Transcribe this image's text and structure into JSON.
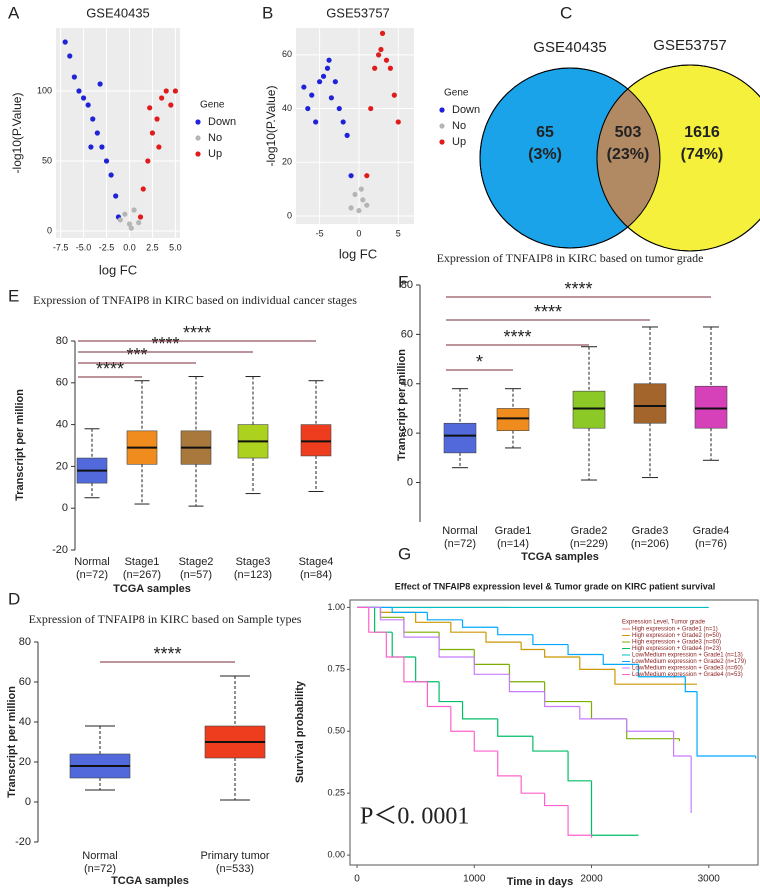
{
  "chart_data": [
    {
      "type": "scatter",
      "panel": "A",
      "title": "GSE40435",
      "xlabel": "log FC",
      "ylabel": "-log10(P.Value)",
      "legend_title": "Gene",
      "xlim": [
        -8,
        5.5
      ],
      "ylim": [
        -5,
        145
      ],
      "xticks": [
        -7.5,
        {
          "value": -5,
          "label": "-5.0"
        },
        -2.5,
        {
          "value": 0,
          "label": "0.0"
        },
        2.5,
        {
          "value": 5,
          "label": "5.0"
        }
      ],
      "yticks": [
        0,
        50,
        100
      ],
      "grid": true,
      "series": [
        {
          "name": "Down",
          "color": "#1f22d6",
          "x": [
            -7,
            -6.5,
            -6,
            -5.5,
            -5,
            -4.5,
            -4,
            -3.5,
            -3,
            -2.5,
            -2,
            -1.5,
            -1.2,
            -3.2,
            -4.2
          ],
          "values": [
            135,
            125,
            110,
            100,
            95,
            90,
            80,
            70,
            60,
            50,
            40,
            25,
            10,
            105,
            60
          ]
        },
        {
          "name": "No",
          "color": "#b5b5b5",
          "x": [
            -1,
            -0.5,
            0,
            0.5,
            1,
            0.2
          ],
          "values": [
            8,
            12,
            5,
            15,
            6,
            2
          ]
        },
        {
          "name": "Up",
          "color": "#e01b1b",
          "x": [
            1.2,
            1.5,
            2,
            2.5,
            3,
            3.5,
            4,
            4.5,
            5,
            2.2,
            3.2
          ],
          "values": [
            10,
            30,
            50,
            70,
            80,
            95,
            100,
            90,
            100,
            88,
            60
          ]
        }
      ]
    },
    {
      "type": "scatter",
      "panel": "B",
      "title": "GSE53757",
      "xlabel": "log FC",
      "ylabel": "-log10(P.Value)",
      "legend_title": "Gene",
      "xlim": [
        -8,
        7
      ],
      "ylim": [
        -3,
        70
      ],
      "xticks": [
        -5,
        0,
        5
      ],
      "yticks": [
        0,
        20,
        40,
        60
      ],
      "grid": true,
      "series": [
        {
          "name": "Down",
          "color": "#1f22d6",
          "x": [
            -7,
            -6.5,
            -6,
            -5,
            -4.5,
            -4,
            -3.5,
            -3,
            -2.5,
            -2,
            -1.5,
            -1,
            -5.5,
            -3.8
          ],
          "values": [
            48,
            40,
            45,
            50,
            52,
            55,
            44,
            50,
            40,
            35,
            30,
            15,
            35,
            58
          ]
        },
        {
          "name": "No",
          "color": "#b5b5b5",
          "x": [
            -1,
            -0.5,
            0,
            0.5,
            1,
            0.3
          ],
          "values": [
            3,
            8,
            2,
            6,
            4,
            10
          ]
        },
        {
          "name": "Up",
          "color": "#e01b1b",
          "x": [
            1,
            1.5,
            2,
            2.5,
            3,
            3.5,
            4,
            4.5,
            5,
            2.8
          ],
          "values": [
            15,
            40,
            55,
            60,
            68,
            58,
            55,
            45,
            35,
            62
          ]
        }
      ]
    },
    {
      "type": "venn",
      "panel": "C",
      "sets": [
        {
          "name": "GSE40435",
          "color": "#1aa3e8"
        },
        {
          "name": "GSE53757",
          "color": "#f5f03c"
        }
      ],
      "overlap_color": "#b18a64",
      "regions": [
        {
          "count": 65,
          "percent_label": "(3%)"
        },
        {
          "count": 503,
          "percent_label": "(23%)"
        },
        {
          "count": 1616,
          "percent_label": "(74%)"
        }
      ]
    },
    {
      "type": "box",
      "panel": "E",
      "title": "Expression of TNFAIP8 in KIRC based on individual cancer stages",
      "ylabel": "Transcript per million",
      "xlabel": "TCGA samples",
      "categories": [
        "Normal",
        "Stage1",
        "Stage2",
        "Stage3",
        "Stage4"
      ],
      "n_labels": [
        "(n=72)",
        "(n=267)",
        "(n=57)",
        "(n=123)",
        "(n=84)"
      ],
      "ylim": [
        -20,
        80
      ],
      "yticks": [
        -20,
        0,
        20,
        40,
        60,
        80
      ],
      "boxes": [
        {
          "min": 5,
          "q1": 12,
          "median": 18,
          "q3": 24,
          "max": 38,
          "color": "#5169db"
        },
        {
          "min": 2,
          "q1": 21,
          "median": 29,
          "q3": 37,
          "max": 61,
          "color": "#f08c1e"
        },
        {
          "min": 1,
          "q1": 21,
          "median": 29,
          "q3": 37,
          "max": 63,
          "color": "#a9783c"
        },
        {
          "min": 7,
          "q1": 24,
          "median": 32,
          "q3": 40,
          "max": 63,
          "color": "#acd11e"
        },
        {
          "min": 8,
          "q1": 25,
          "median": 32,
          "q3": 40,
          "max": 61,
          "color": "#ee3c1e"
        }
      ],
      "comparisons": [
        {
          "groups": [
            "Normal",
            "Stage1"
          ],
          "label": "****"
        },
        {
          "groups": [
            "Normal",
            "Stage2"
          ],
          "label": "***"
        },
        {
          "groups": [
            "Normal",
            "Stage3"
          ],
          "label": "****"
        },
        {
          "groups": [
            "Normal",
            "Stage4"
          ],
          "label": "****"
        }
      ]
    },
    {
      "type": "box",
      "panel": "F",
      "title": "Expression of TNFAIP8 in KIRC based on tumor grade",
      "ylabel": "Transcript per million",
      "xlabel": "TCGA samples",
      "categories": [
        "Normal",
        "Grade1",
        "Grade2",
        "Grade3",
        "Grade4"
      ],
      "n_labels": [
        "(n=72)",
        "(n=14)",
        "(n=229)",
        "(n=206)",
        "(n=76)"
      ],
      "ylim": [
        -16,
        80
      ],
      "yticks": [
        0,
        20,
        40,
        60,
        80
      ],
      "boxes": [
        {
          "min": 6,
          "q1": 12,
          "median": 19,
          "q3": 24,
          "max": 38,
          "color": "#5169db"
        },
        {
          "min": 14,
          "q1": 21,
          "median": 26,
          "q3": 30,
          "max": 38,
          "color": "#f08c1e"
        },
        {
          "min": 1,
          "q1": 22,
          "median": 30,
          "q3": 37,
          "max": 55,
          "color": "#8cc927"
        },
        {
          "min": 2,
          "q1": 24,
          "median": 31,
          "q3": 40,
          "max": 63,
          "color": "#a3652b"
        },
        {
          "min": 9,
          "q1": 22,
          "median": 30,
          "q3": 39,
          "max": 63,
          "color": "#d640b9"
        }
      ],
      "comparisons": [
        {
          "groups": [
            "Normal",
            "Grade1"
          ],
          "label": "*"
        },
        {
          "groups": [
            "Normal",
            "Grade2"
          ],
          "label": "****"
        },
        {
          "groups": [
            "Normal",
            "Grade3"
          ],
          "label": "****"
        },
        {
          "groups": [
            "Normal",
            "Grade4"
          ],
          "label": "****"
        }
      ]
    },
    {
      "type": "box",
      "panel": "D",
      "title": "Expression of TNFAIP8 in KIRC based on Sample types",
      "ylabel": "Transcript per million",
      "xlabel": "TCGA samples",
      "categories": [
        "Normal",
        "Primary tumor"
      ],
      "n_labels": [
        "(n=72)",
        "(n=533)"
      ],
      "ylim": [
        -20,
        80
      ],
      "yticks": [
        -20,
        0,
        20,
        40,
        60,
        80
      ],
      "boxes": [
        {
          "min": 6,
          "q1": 12,
          "median": 18,
          "q3": 24,
          "max": 38,
          "color": "#5169db"
        },
        {
          "min": 1,
          "q1": 22,
          "median": 30,
          "q3": 38,
          "max": 63,
          "color": "#ee3c1e"
        }
      ],
      "comparisons": [
        {
          "groups": [
            "Normal",
            "Primary tumor"
          ],
          "label": "****"
        }
      ]
    },
    {
      "type": "line",
      "panel": "G",
      "title": "Effect of TNFAIP8 expression level & Tumor grade on KIRC patient survival",
      "xlabel": "Time in days",
      "ylabel": "Survival probability",
      "legend_title": "Expression Level, Tumor grade",
      "annotation": "P＜0. 0001",
      "xlim": [
        -60,
        3420
      ],
      "ylim": [
        -0.04,
        1.03
      ],
      "xticks": [
        0,
        1000,
        2000,
        3000
      ],
      "yticks": [
        {
          "value": 0,
          "label": "0.00"
        },
        0.25,
        {
          "value": 0.5,
          "label": "0.50"
        },
        0.75,
        {
          "value": 1,
          "label": "1.00"
        }
      ],
      "series": [
        {
          "name": "High expression + Grade1 (n=1)",
          "color": "#f8766d",
          "x": [
            0,
            1300
          ],
          "values": [
            1,
            1
          ]
        },
        {
          "name": "High expression + Grade2 (n=50)",
          "color": "#cd9600",
          "x": [
            0,
            200,
            500,
            800,
            1100,
            1400,
            1600,
            1900,
            2200,
            2900
          ],
          "values": [
            1,
            0.98,
            0.94,
            0.9,
            0.86,
            0.83,
            0.8,
            0.75,
            0.69,
            0.69
          ]
        },
        {
          "name": "High expression + Grade3 (n=60)",
          "color": "#7cae00",
          "x": [
            0,
            200,
            400,
            700,
            1000,
            1300,
            1600,
            2000,
            2300,
            2750
          ],
          "values": [
            1,
            0.96,
            0.9,
            0.83,
            0.77,
            0.7,
            0.62,
            0.55,
            0.47,
            0.46
          ]
        },
        {
          "name": "High expression + Grade4 (n=23)",
          "color": "#00be67",
          "x": [
            0,
            150,
            300,
            500,
            700,
            900,
            1200,
            1500,
            1800,
            2000,
            2400
          ],
          "values": [
            1,
            0.9,
            0.8,
            0.7,
            0.62,
            0.55,
            0.48,
            0.42,
            0.3,
            0.08,
            0.08
          ]
        },
        {
          "name": "Low/Medium expression + Grade1 (n=13)",
          "color": "#00bfc4",
          "x": [
            0,
            3000
          ],
          "values": [
            1,
            1
          ]
        },
        {
          "name": "Low/Medium expression + Grade2 (n=179)",
          "color": "#00a9ff",
          "x": [
            0,
            300,
            600,
            900,
            1200,
            1500,
            1800,
            2100,
            2400,
            2800,
            2900,
            3400
          ],
          "values": [
            1,
            0.98,
            0.95,
            0.92,
            0.89,
            0.85,
            0.81,
            0.77,
            0.72,
            0.66,
            0.4,
            0.39
          ]
        },
        {
          "name": "Low/Medium expression + Grade3 (n=60)",
          "color": "#c77cff",
          "x": [
            0,
            200,
            400,
            700,
            1000,
            1300,
            1600,
            1900,
            2300,
            2700,
            2850
          ],
          "values": [
            1,
            0.95,
            0.88,
            0.8,
            0.73,
            0.66,
            0.6,
            0.55,
            0.5,
            0.4,
            0.17
          ]
        },
        {
          "name": "Low/Medium expression + Grade4 (n=53)",
          "color": "#ff61cc",
          "x": [
            0,
            100,
            250,
            400,
            600,
            800,
            1000,
            1200,
            1400,
            1600,
            1800,
            2000
          ],
          "values": [
            1,
            0.9,
            0.8,
            0.7,
            0.6,
            0.5,
            0.42,
            0.32,
            0.25,
            0.2,
            0.08,
            0.07
          ]
        }
      ]
    }
  ]
}
